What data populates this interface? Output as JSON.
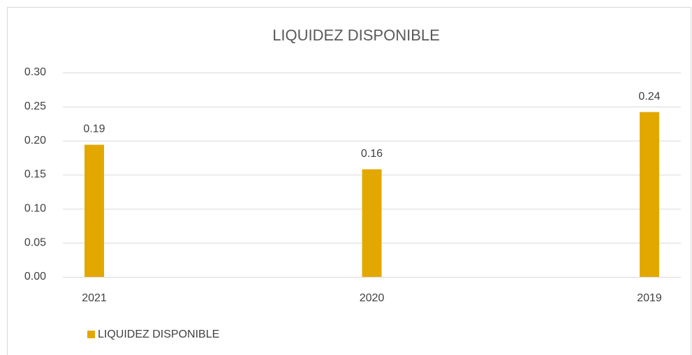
{
  "chart_data": {
    "type": "bar",
    "title": "LIQUIDEZ DISPONIBLE",
    "categories": [
      "2021",
      "2020",
      "2019"
    ],
    "series": [
      {
        "name": "LIQUIDEZ DISPONIBLE",
        "color": "#e3a800",
        "values": [
          0.194,
          0.158,
          0.242
        ],
        "value_labels": [
          "0.19",
          "0.16",
          "0.24"
        ]
      }
    ],
    "ylim": [
      0,
      0.3
    ],
    "yticks": [
      {
        "value": 0,
        "label": "0.00"
      },
      {
        "value": 0.05,
        "label": "0.05"
      },
      {
        "value": 0.1,
        "label": "0.10"
      },
      {
        "value": 0.15,
        "label": "0.15"
      },
      {
        "value": 0.2,
        "label": "0.20"
      },
      {
        "value": 0.25,
        "label": "0.25"
      },
      {
        "value": 0.3,
        "label": "0.30"
      }
    ],
    "grid": true,
    "legend": "bottom-left"
  }
}
